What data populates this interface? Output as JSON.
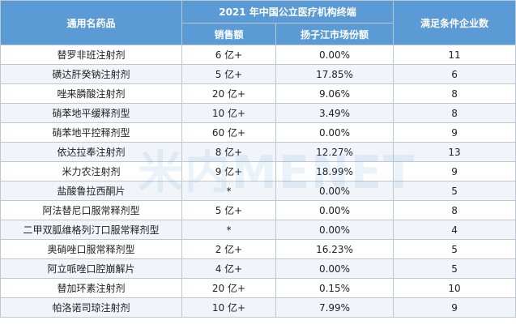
{
  "header": {
    "col_name": "通用名药品",
    "group_title": "2021 年中国公立医疗机构终端",
    "col_sales": "销售额",
    "col_share": "扬子江市场份额",
    "col_firms": "满足条件企业数"
  },
  "rows": [
    {
      "name": "替罗非班注射剂",
      "sales": "6 亿+",
      "share": "0.00%",
      "firms": "11"
    },
    {
      "name": "磺达肝癸钠注射剂",
      "sales": "5 亿+",
      "share": "17.85%",
      "firms": "6"
    },
    {
      "name": "唑来膦酸注射剂",
      "sales": "20 亿+",
      "share": "9.06%",
      "firms": "8"
    },
    {
      "name": "硝苯地平缓释剂型",
      "sales": "10 亿+",
      "share": "3.49%",
      "firms": "8"
    },
    {
      "name": "硝苯地平控释剂型",
      "sales": "60 亿+",
      "share": "0.00%",
      "firms": "9"
    },
    {
      "name": "依达拉奉注射剂",
      "sales": "8 亿+",
      "share": "12.27%",
      "firms": "13"
    },
    {
      "name": "米力农注射剂",
      "sales": "9 亿+",
      "share": "18.99%",
      "firms": "9"
    },
    {
      "name": "盐酸鲁拉西酮片",
      "sales": "*",
      "share": "0.00%",
      "firms": "5"
    },
    {
      "name": "阿法替尼口服常释剂型",
      "sales": "5 亿+",
      "share": "0.00%",
      "firms": "8"
    },
    {
      "name": "二甲双胍维格列汀口服常释剂型",
      "sales": "*",
      "share": "0.00%",
      "firms": "4"
    },
    {
      "name": "奥硝唑口服常释剂型",
      "sales": "2 亿+",
      "share": "16.23%",
      "firms": "5"
    },
    {
      "name": "阿立哌唑口腔崩解片",
      "sales": "4 亿+",
      "share": "0.00%",
      "firms": "5"
    },
    {
      "name": "替加环素注射剂",
      "sales": "20 亿+",
      "share": "0.15%",
      "firms": "10"
    },
    {
      "name": "帕洛诺司琼注射剂",
      "sales": "10 亿+",
      "share": "7.99%",
      "firms": "9"
    }
  ],
  "watermark": "米内MENET",
  "colors": {
    "header_bg": "#5b9bd5",
    "stripe": "#f1f5fa",
    "border": "#bfc6d0"
  }
}
